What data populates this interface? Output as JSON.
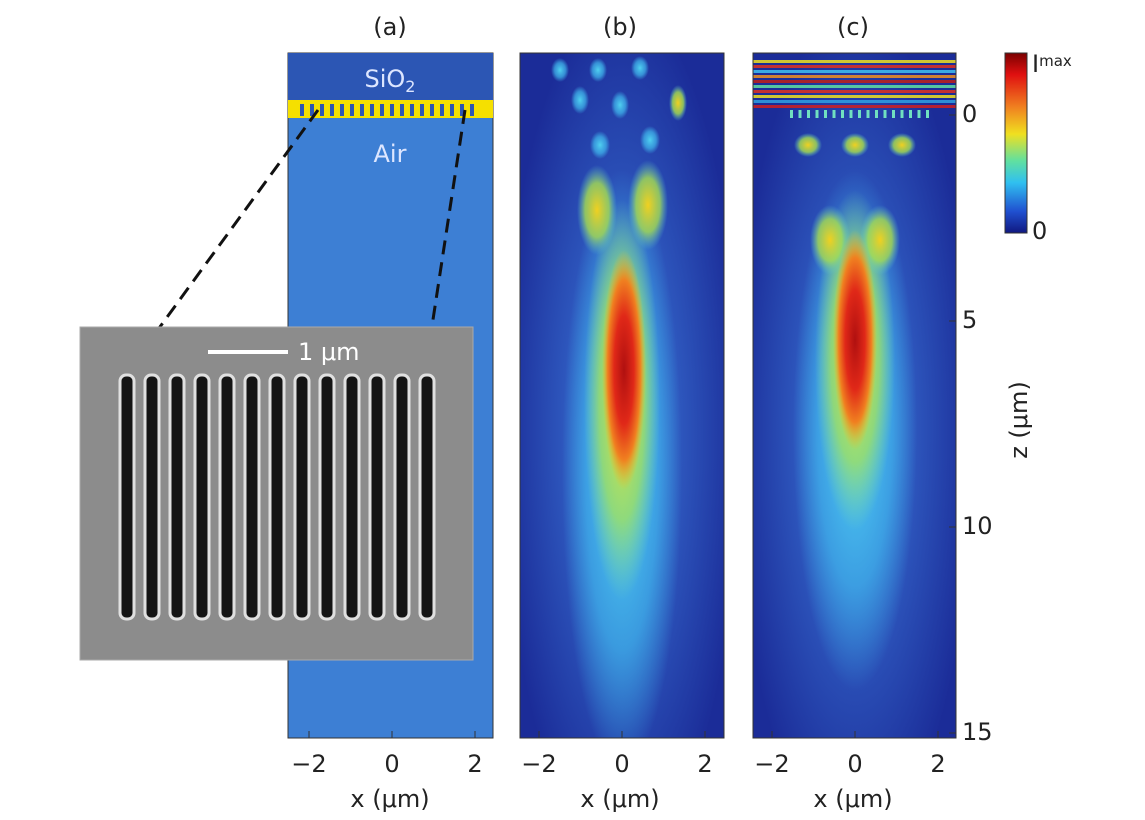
{
  "figure": {
    "panels": [
      {
        "label": "(a)",
        "x_label": "x (μm)",
        "x_ticks": [
          "−2",
          "0",
          "2"
        ]
      },
      {
        "label": "(b)",
        "x_label": "x (μm)",
        "x_ticks": [
          "−2",
          "0",
          "2"
        ]
      },
      {
        "label": "(c)",
        "x_label": "x (μm)",
        "x_ticks": [
          "−2",
          "0",
          "2"
        ]
      }
    ],
    "panel_a": {
      "top_layer": "SiO",
      "top_layer_subscript": "2",
      "bottom_layer": "Air",
      "inset_scale": "1 μm"
    },
    "z_axis": {
      "label": "z (μm)",
      "ticks": [
        "0",
        "5",
        "10",
        "15"
      ]
    },
    "colorbar": {
      "max_label": "I",
      "max_subscript": "max",
      "min_label": "0"
    }
  }
}
